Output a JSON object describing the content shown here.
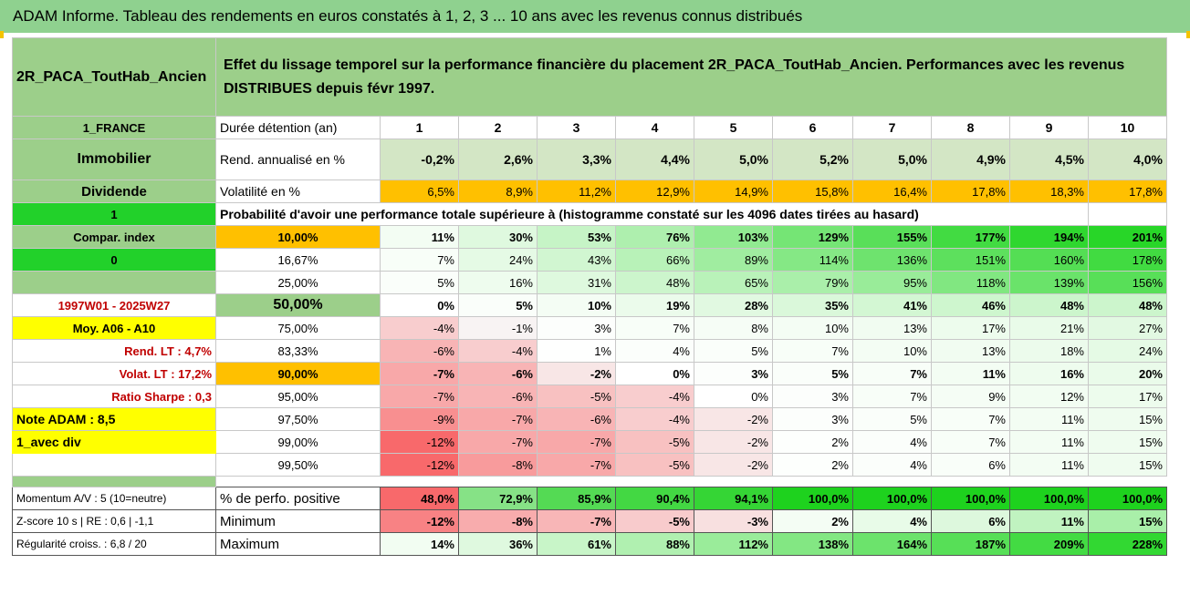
{
  "title": "ADAM Informe. Tableau des rendements en euros constatés à 1, 2, 3 ... 10 ans avec les revenus connus distribués",
  "fund_name": "2R_PACA_ToutHab_Ancien",
  "description": "Effet du lissage temporel sur la performance financière du placement 2R_PACA_ToutHab_Ancien. Performances avec les revenus DISTRIBUES depuis févr 1997.",
  "side": {
    "region": "1_FRANCE",
    "category": "Immobilier",
    "distribution": "Dividende",
    "flag_1": "1",
    "compar_index": "Compar. index",
    "flag_0": "0",
    "period": "1997W01 - 2025W27",
    "moy": "Moy. A06 - A10",
    "rend_lt": "Rend. LT :   4,7%",
    "volat_lt": "Volat. LT :   17,2%",
    "sharpe": "Ratio Sharpe :   0,3",
    "note": "Note ADAM : 8,5",
    "avec_div": "1_avec div",
    "momentum": "Momentum A/V : 5 (10=neutre)",
    "zscore": "Z-score 10 s | RE : 0,6 | -1,1",
    "regularite": "Régularité croiss. : 6,8 / 20"
  },
  "labels": {
    "duree": "Durée détention (an)",
    "rend": "Rend. annualisé en %",
    "vol": "Volatilité en %",
    "proba": "Probabilité d'avoir une performance totale supérieure à (histogramme constaté sur les 4096 dates tirées au hasard)",
    "perf_pos": "% de perfo. positive",
    "minimum": "Minimum",
    "maximum": "Maximum"
  },
  "years": [
    "1",
    "2",
    "3",
    "4",
    "5",
    "6",
    "7",
    "8",
    "9",
    "10"
  ],
  "rend": [
    "-0,2%",
    "2,6%",
    "3,3%",
    "4,4%",
    "5,0%",
    "5,2%",
    "5,0%",
    "4,9%",
    "4,5%",
    "4,0%"
  ],
  "vol": [
    "6,5%",
    "8,9%",
    "11,2%",
    "12,9%",
    "14,9%",
    "15,8%",
    "16,4%",
    "17,8%",
    "18,3%",
    "17,8%"
  ],
  "prob_rows": [
    {
      "q": "10,00%",
      "v": [
        "11%",
        "30%",
        "53%",
        "76%",
        "103%",
        "129%",
        "155%",
        "177%",
        "194%",
        "201%"
      ]
    },
    {
      "q": "16,67%",
      "v": [
        "7%",
        "24%",
        "43%",
        "66%",
        "89%",
        "114%",
        "136%",
        "151%",
        "160%",
        "178%"
      ]
    },
    {
      "q": "25,00%",
      "v": [
        "5%",
        "16%",
        "31%",
        "48%",
        "65%",
        "79%",
        "95%",
        "118%",
        "139%",
        "156%"
      ]
    },
    {
      "q": "50,00%",
      "v": [
        "0%",
        "5%",
        "10%",
        "19%",
        "28%",
        "35%",
        "41%",
        "46%",
        "48%",
        "48%"
      ]
    },
    {
      "q": "75,00%",
      "v": [
        "-4%",
        "-1%",
        "3%",
        "7%",
        "8%",
        "10%",
        "13%",
        "17%",
        "21%",
        "27%"
      ]
    },
    {
      "q": "83,33%",
      "v": [
        "-6%",
        "-4%",
        "1%",
        "4%",
        "5%",
        "7%",
        "10%",
        "13%",
        "18%",
        "24%"
      ]
    },
    {
      "q": "90,00%",
      "v": [
        "-7%",
        "-6%",
        "-2%",
        "0%",
        "3%",
        "5%",
        "7%",
        "11%",
        "16%",
        "20%"
      ]
    },
    {
      "q": "95,00%",
      "v": [
        "-7%",
        "-6%",
        "-5%",
        "-4%",
        "0%",
        "3%",
        "7%",
        "9%",
        "12%",
        "17%"
      ]
    },
    {
      "q": "97,50%",
      "v": [
        "-9%",
        "-7%",
        "-6%",
        "-4%",
        "-2%",
        "3%",
        "5%",
        "7%",
        "11%",
        "15%"
      ]
    },
    {
      "q": "99,00%",
      "v": [
        "-12%",
        "-7%",
        "-7%",
        "-5%",
        "-2%",
        "2%",
        "4%",
        "7%",
        "11%",
        "15%"
      ]
    },
    {
      "q": "99,50%",
      "v": [
        "-12%",
        "-8%",
        "-7%",
        "-5%",
        "-2%",
        "2%",
        "4%",
        "6%",
        "11%",
        "15%"
      ]
    }
  ],
  "perf_pos": [
    "48,0%",
    "72,9%",
    "85,9%",
    "90,4%",
    "94,1%",
    "100,0%",
    "100,0%",
    "100,0%",
    "100,0%",
    "100,0%"
  ],
  "minimum": [
    "-12%",
    "-8%",
    "-7%",
    "-5%",
    "-3%",
    "2%",
    "4%",
    "6%",
    "11%",
    "15%"
  ],
  "maximum": [
    "14%",
    "36%",
    "61%",
    "88%",
    "112%",
    "138%",
    "164%",
    "187%",
    "209%",
    "228%"
  ],
  "colors": {
    "header_green": "#8fd18f",
    "bright_green": "#22d12a",
    "orange": "#ffc000",
    "yellow": "#ffff00",
    "red_text": "#c00000",
    "neg_red": "#f8696b",
    "pos_green": "#63be7b"
  }
}
